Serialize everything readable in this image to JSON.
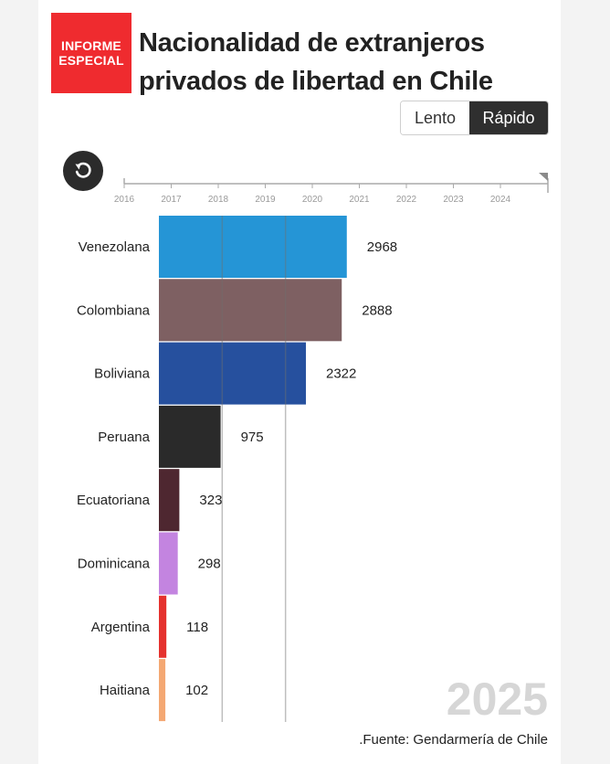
{
  "logo": {
    "line1": "INFORME",
    "line2": "ESPECIAL"
  },
  "title": "Nacionalidad de extranjeros privados de libertad en Chile",
  "speed": {
    "slow_label": "Lento",
    "fast_label": "Rápido",
    "selected": "Rápido"
  },
  "source": ".Fuente: Gendarmería de Chile",
  "colors": {
    "brand": "#ef2b2f"
  },
  "chart_data": {
    "type": "bar",
    "orientation": "horizontal",
    "title": "Nacionalidad de extranjeros privados de libertad en Chile",
    "current_year": "2025",
    "timeline_ticks": [
      "2016",
      "2017",
      "2018",
      "2019",
      "2020",
      "2021",
      "2022",
      "2023",
      "2024"
    ],
    "categories": [
      "Venezolana",
      "Colombiana",
      "Boliviana",
      "Peruana",
      "Ecuatoriana",
      "Dominicana",
      "Argentina",
      "Haitiana"
    ],
    "values": [
      2968,
      2888,
      2322,
      975,
      323,
      298,
      118,
      102
    ],
    "colors": [
      "#2595d6",
      "#7e6062",
      "#26509e",
      "#2a2a2a",
      "#4e2730",
      "#c384e0",
      "#e5322e",
      "#f4a873"
    ],
    "xlim": [
      0,
      3000
    ],
    "gridlines": [
      1000,
      2000
    ]
  }
}
